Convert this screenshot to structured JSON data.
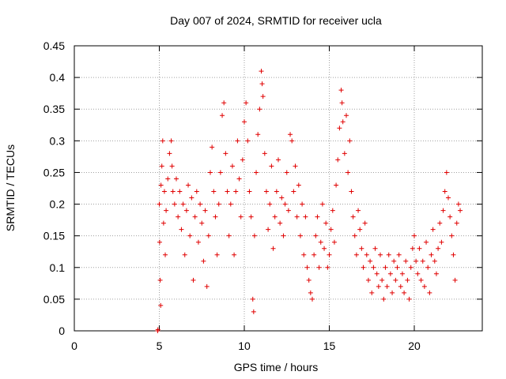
{
  "chart_data": {
    "type": "scatter",
    "title": "Day 007 of 2024, SRMTID for receiver ucla",
    "xlabel": "GPS time / hours",
    "ylabel": "SRMTID / TECUs",
    "xlim": [
      0,
      24
    ],
    "ylim": [
      0,
      0.45
    ],
    "xticks": [
      0,
      5,
      10,
      15,
      20
    ],
    "xtick_labels": [
      "0",
      "5",
      "10",
      "15",
      "20"
    ],
    "yticks": [
      0,
      0.05,
      0.1,
      0.15,
      0.2,
      0.25,
      0.3,
      0.35,
      0.4,
      0.45
    ],
    "ytick_labels": [
      "0",
      "0.05",
      "0.1",
      "0.15",
      "0.2",
      "0.25",
      "0.3",
      "0.35",
      "0.4",
      "0.45"
    ],
    "grid": true,
    "marker": "plus",
    "color": "#e00000",
    "series": [
      {
        "name": "SRMTID",
        "points": [
          [
            4.9,
            0.0
          ],
          [
            4.92,
            0.002
          ],
          [
            5.0,
            0.2
          ],
          [
            5.02,
            0.14
          ],
          [
            5.05,
            0.08
          ],
          [
            5.08,
            0.04
          ],
          [
            5.1,
            0.23
          ],
          [
            5.15,
            0.26
          ],
          [
            5.2,
            0.3
          ],
          [
            5.25,
            0.17
          ],
          [
            5.3,
            0.22
          ],
          [
            5.35,
            0.12
          ],
          [
            5.4,
            0.19
          ],
          [
            5.5,
            0.24
          ],
          [
            5.6,
            0.28
          ],
          [
            5.7,
            0.3
          ],
          [
            5.75,
            0.26
          ],
          [
            5.8,
            0.22
          ],
          [
            5.9,
            0.2
          ],
          [
            6.0,
            0.24
          ],
          [
            6.1,
            0.18
          ],
          [
            6.2,
            0.22
          ],
          [
            6.3,
            0.16
          ],
          [
            6.4,
            0.2
          ],
          [
            6.5,
            0.12
          ],
          [
            6.6,
            0.19
          ],
          [
            6.7,
            0.23
          ],
          [
            6.8,
            0.15
          ],
          [
            6.9,
            0.21
          ],
          [
            7.0,
            0.08
          ],
          [
            7.1,
            0.18
          ],
          [
            7.2,
            0.22
          ],
          [
            7.3,
            0.14
          ],
          [
            7.4,
            0.2
          ],
          [
            7.5,
            0.17
          ],
          [
            7.6,
            0.11
          ],
          [
            7.7,
            0.19
          ],
          [
            7.8,
            0.07
          ],
          [
            7.9,
            0.15
          ],
          [
            8.0,
            0.25
          ],
          [
            8.1,
            0.29
          ],
          [
            8.2,
            0.22
          ],
          [
            8.3,
            0.18
          ],
          [
            8.4,
            0.12
          ],
          [
            8.5,
            0.2
          ],
          [
            8.6,
            0.25
          ],
          [
            8.7,
            0.34
          ],
          [
            8.8,
            0.36
          ],
          [
            8.9,
            0.28
          ],
          [
            9.0,
            0.22
          ],
          [
            9.1,
            0.15
          ],
          [
            9.2,
            0.2
          ],
          [
            9.3,
            0.26
          ],
          [
            9.4,
            0.12
          ],
          [
            9.5,
            0.22
          ],
          [
            9.6,
            0.3
          ],
          [
            9.7,
            0.24
          ],
          [
            9.8,
            0.18
          ],
          [
            9.9,
            0.27
          ],
          [
            10.0,
            0.33
          ],
          [
            10.1,
            0.36
          ],
          [
            10.2,
            0.3
          ],
          [
            10.3,
            0.22
          ],
          [
            10.4,
            0.18
          ],
          [
            10.5,
            0.05
          ],
          [
            10.55,
            0.03
          ],
          [
            10.6,
            0.15
          ],
          [
            10.7,
            0.25
          ],
          [
            10.8,
            0.31
          ],
          [
            10.9,
            0.35
          ],
          [
            11.0,
            0.41
          ],
          [
            11.05,
            0.39
          ],
          [
            11.1,
            0.37
          ],
          [
            11.2,
            0.28
          ],
          [
            11.3,
            0.22
          ],
          [
            11.4,
            0.16
          ],
          [
            11.5,
            0.2
          ],
          [
            11.6,
            0.26
          ],
          [
            11.7,
            0.13
          ],
          [
            11.8,
            0.18
          ],
          [
            11.9,
            0.22
          ],
          [
            12.0,
            0.27
          ],
          [
            12.1,
            0.17
          ],
          [
            12.2,
            0.21
          ],
          [
            12.3,
            0.15
          ],
          [
            12.4,
            0.2
          ],
          [
            12.5,
            0.25
          ],
          [
            12.6,
            0.19
          ],
          [
            12.7,
            0.31
          ],
          [
            12.8,
            0.3
          ],
          [
            12.9,
            0.22
          ],
          [
            13.0,
            0.26
          ],
          [
            13.1,
            0.18
          ],
          [
            13.2,
            0.23
          ],
          [
            13.3,
            0.15
          ],
          [
            13.4,
            0.2
          ],
          [
            13.5,
            0.12
          ],
          [
            13.6,
            0.18
          ],
          [
            13.7,
            0.1
          ],
          [
            13.8,
            0.08
          ],
          [
            13.9,
            0.06
          ],
          [
            14.0,
            0.05
          ],
          [
            14.1,
            0.12
          ],
          [
            14.2,
            0.15
          ],
          [
            14.3,
            0.18
          ],
          [
            14.4,
            0.1
          ],
          [
            14.5,
            0.14
          ],
          [
            14.6,
            0.2
          ],
          [
            14.7,
            0.13
          ],
          [
            14.8,
            0.17
          ],
          [
            14.9,
            0.1
          ],
          [
            15.0,
            0.12
          ],
          [
            15.1,
            0.16
          ],
          [
            15.2,
            0.19
          ],
          [
            15.3,
            0.14
          ],
          [
            15.4,
            0.23
          ],
          [
            15.5,
            0.27
          ],
          [
            15.6,
            0.32
          ],
          [
            15.7,
            0.38
          ],
          [
            15.75,
            0.36
          ],
          [
            15.8,
            0.33
          ],
          [
            15.9,
            0.28
          ],
          [
            16.0,
            0.34
          ],
          [
            16.1,
            0.25
          ],
          [
            16.2,
            0.3
          ],
          [
            16.3,
            0.22
          ],
          [
            16.4,
            0.18
          ],
          [
            16.5,
            0.15
          ],
          [
            16.6,
            0.12
          ],
          [
            16.7,
            0.19
          ],
          [
            16.8,
            0.16
          ],
          [
            16.9,
            0.13
          ],
          [
            17.0,
            0.1
          ],
          [
            17.1,
            0.17
          ],
          [
            17.2,
            0.12
          ],
          [
            17.3,
            0.08
          ],
          [
            17.4,
            0.11
          ],
          [
            17.5,
            0.06
          ],
          [
            17.6,
            0.1
          ],
          [
            17.7,
            0.13
          ],
          [
            17.8,
            0.09
          ],
          [
            17.9,
            0.07
          ],
          [
            18.0,
            0.12
          ],
          [
            18.1,
            0.08
          ],
          [
            18.2,
            0.05
          ],
          [
            18.3,
            0.1
          ],
          [
            18.4,
            0.07
          ],
          [
            18.5,
            0.12
          ],
          [
            18.6,
            0.09
          ],
          [
            18.7,
            0.06
          ],
          [
            18.8,
            0.11
          ],
          [
            18.9,
            0.08
          ],
          [
            19.0,
            0.1
          ],
          [
            19.1,
            0.12
          ],
          [
            19.2,
            0.07
          ],
          [
            19.3,
            0.09
          ],
          [
            19.4,
            0.06
          ],
          [
            19.5,
            0.11
          ],
          [
            19.6,
            0.08
          ],
          [
            19.7,
            0.05
          ],
          [
            19.8,
            0.1
          ],
          [
            19.9,
            0.13
          ],
          [
            20.0,
            0.15
          ],
          [
            20.1,
            0.11
          ],
          [
            20.2,
            0.09
          ],
          [
            20.3,
            0.13
          ],
          [
            20.4,
            0.08
          ],
          [
            20.5,
            0.11
          ],
          [
            20.6,
            0.07
          ],
          [
            20.7,
            0.14
          ],
          [
            20.8,
            0.1
          ],
          [
            20.9,
            0.06
          ],
          [
            21.0,
            0.12
          ],
          [
            21.1,
            0.16
          ],
          [
            21.2,
            0.11
          ],
          [
            21.3,
            0.09
          ],
          [
            21.4,
            0.13
          ],
          [
            21.5,
            0.17
          ],
          [
            21.6,
            0.14
          ],
          [
            21.7,
            0.19
          ],
          [
            21.8,
            0.22
          ],
          [
            21.9,
            0.25
          ],
          [
            22.0,
            0.21
          ],
          [
            22.1,
            0.18
          ],
          [
            22.2,
            0.15
          ],
          [
            22.3,
            0.12
          ],
          [
            22.4,
            0.08
          ],
          [
            22.5,
            0.17
          ],
          [
            22.6,
            0.2
          ],
          [
            22.7,
            0.19
          ]
        ]
      }
    ]
  }
}
